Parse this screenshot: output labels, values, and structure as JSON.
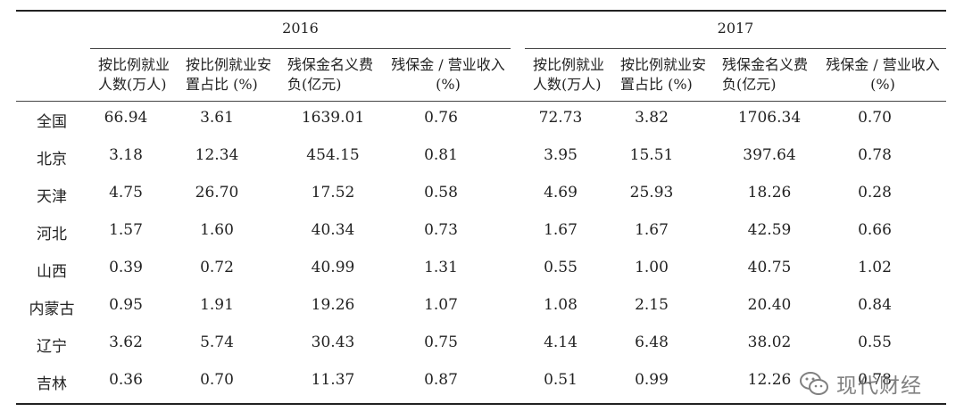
{
  "years": [
    "2016",
    "2017"
  ],
  "headers": [
    [
      "按比例就业",
      "人数(万人)"
    ],
    [
      "按比例就业安",
      "置占比 (%)"
    ],
    [
      "残保金名义费",
      "负(亿元)"
    ],
    [
      "残保金 / 营业收入",
      "(%)"
    ]
  ],
  "rows": [
    {
      "region": "全国",
      "v": [
        "66.94",
        "3.61",
        "1639.01",
        "0.76",
        "72.73",
        "3.82",
        "1706.34",
        "0.70"
      ]
    },
    {
      "region": "北京",
      "v": [
        "3.18",
        "12.34",
        "454.15",
        "0.81",
        "3.95",
        "15.51",
        "397.64",
        "0.78"
      ]
    },
    {
      "region": "天津",
      "v": [
        "4.75",
        "26.70",
        "17.52",
        "0.58",
        "4.69",
        "25.93",
        "18.26",
        "0.28"
      ]
    },
    {
      "region": "河北",
      "v": [
        "1.57",
        "1.60",
        "40.34",
        "0.73",
        "1.67",
        "1.67",
        "42.59",
        "0.66"
      ]
    },
    {
      "region": "山西",
      "v": [
        "0.39",
        "0.72",
        "40.99",
        "1.31",
        "0.55",
        "1.00",
        "40.75",
        "1.02"
      ]
    },
    {
      "region": "内蒙古",
      "v": [
        "0.95",
        "1.91",
        "19.26",
        "1.07",
        "1.08",
        "2.15",
        "20.40",
        "0.84"
      ]
    },
    {
      "region": "辽宁",
      "v": [
        "3.62",
        "5.74",
        "30.43",
        "0.75",
        "4.14",
        "6.48",
        "38.02",
        "0.55"
      ]
    },
    {
      "region": "吉林",
      "v": [
        "0.36",
        "0.70",
        "11.37",
        "0.87",
        "0.51",
        "0.99",
        "12.26",
        "0.78"
      ]
    }
  ],
  "watermark": {
    "text": "现代财经",
    "icon": "wechat-icon"
  }
}
